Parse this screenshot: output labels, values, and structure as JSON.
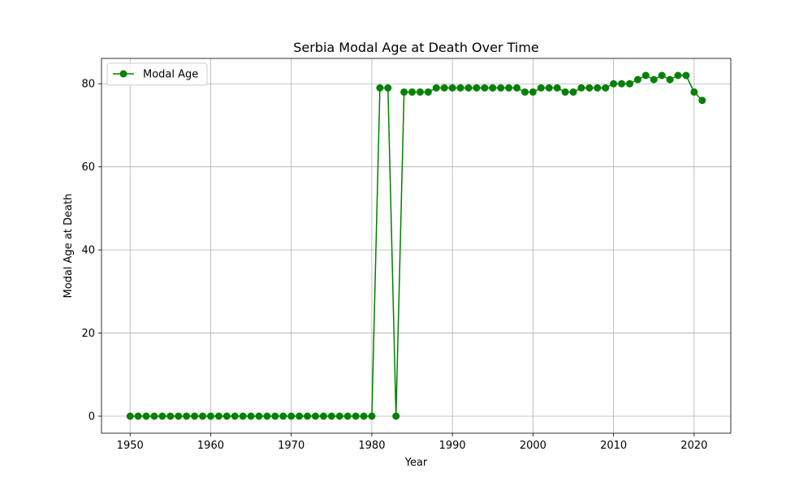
{
  "chart_data": {
    "type": "line",
    "title": "Serbia Modal Age at Death Over Time",
    "xlabel": "Year",
    "ylabel": "Modal Age at Death",
    "xlim": [
      1946.45,
      2024.55
    ],
    "ylim": [
      -4.1,
      86.1
    ],
    "xticks": [
      1950,
      1960,
      1970,
      1980,
      1990,
      2000,
      2010,
      2020
    ],
    "yticks": [
      0,
      20,
      40,
      60,
      80
    ],
    "grid": true,
    "legend_position": "top-left",
    "series": [
      {
        "name": "Modal Age",
        "color": "#008000",
        "marker": "circle",
        "x": [
          1950,
          1951,
          1952,
          1953,
          1954,
          1955,
          1956,
          1957,
          1958,
          1959,
          1960,
          1961,
          1962,
          1963,
          1964,
          1965,
          1966,
          1967,
          1968,
          1969,
          1970,
          1971,
          1972,
          1973,
          1974,
          1975,
          1976,
          1977,
          1978,
          1979,
          1980,
          1981,
          1982,
          1983,
          1984,
          1985,
          1986,
          1987,
          1988,
          1989,
          1990,
          1991,
          1992,
          1993,
          1994,
          1995,
          1996,
          1997,
          1998,
          1999,
          2000,
          2001,
          2002,
          2003,
          2004,
          2005,
          2006,
          2007,
          2008,
          2009,
          2010,
          2011,
          2012,
          2013,
          2014,
          2015,
          2016,
          2017,
          2018,
          2019,
          2020,
          2021
        ],
        "y": [
          0,
          0,
          0,
          0,
          0,
          0,
          0,
          0,
          0,
          0,
          0,
          0,
          0,
          0,
          0,
          0,
          0,
          0,
          0,
          0,
          0,
          0,
          0,
          0,
          0,
          0,
          0,
          0,
          0,
          0,
          0,
          79,
          79,
          0,
          78,
          78,
          78,
          78,
          79,
          79,
          79,
          79,
          79,
          79,
          79,
          79,
          79,
          79,
          79,
          78,
          78,
          79,
          79,
          79,
          78,
          78,
          79,
          79,
          79,
          79,
          80,
          80,
          80,
          81,
          82,
          81,
          82,
          81,
          82,
          82,
          78,
          76
        ]
      }
    ]
  }
}
